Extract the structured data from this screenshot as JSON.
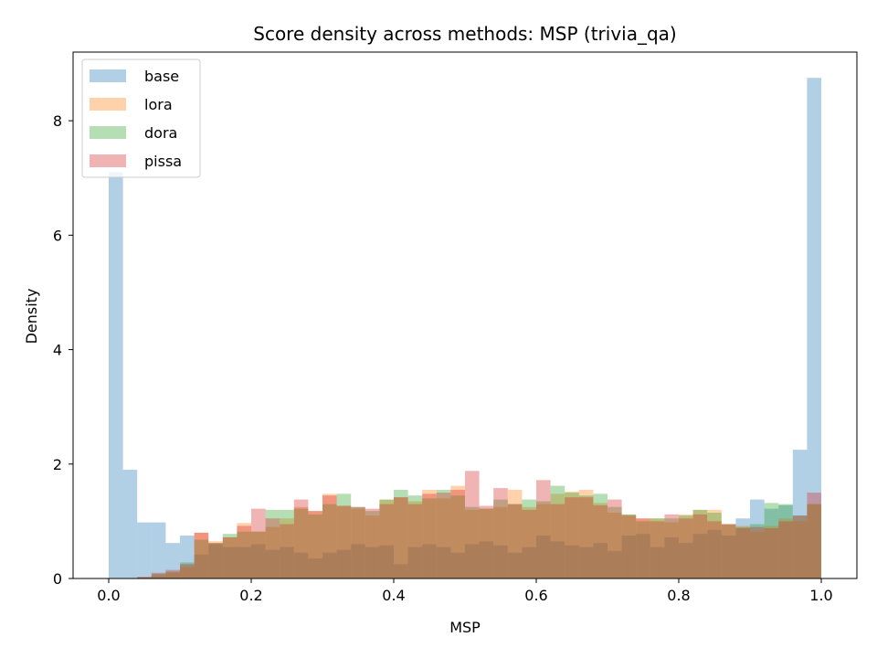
{
  "chart_data": {
    "type": "histogram",
    "title": "Score density across methods: MSP (trivia_qa)",
    "xlabel": "MSP",
    "ylabel": "Density",
    "xlim": [
      -0.05,
      1.05
    ],
    "ylim": [
      0,
      9.2
    ],
    "xticks": [
      "0.0",
      "0.2",
      "0.4",
      "0.6",
      "0.8",
      "1.0"
    ],
    "xtick_values": [
      0.0,
      0.2,
      0.4,
      0.6,
      0.8,
      1.0
    ],
    "yticks": [
      "0",
      "2",
      "4",
      "6",
      "8"
    ],
    "ytick_values": [
      0,
      2,
      4,
      6,
      8
    ],
    "legend_position": "upper-left",
    "grid": false,
    "series": [
      {
        "name": "base",
        "color": "#1f77b4",
        "alpha": 0.35,
        "bin_width": 0.02,
        "x": [
          0.0,
          0.02,
          0.04,
          0.06,
          0.08,
          0.1,
          0.12,
          0.14,
          0.16,
          0.18,
          0.2,
          0.22,
          0.24,
          0.26,
          0.28,
          0.3,
          0.32,
          0.34,
          0.36,
          0.38,
          0.4,
          0.42,
          0.44,
          0.46,
          0.48,
          0.5,
          0.52,
          0.54,
          0.56,
          0.58,
          0.6,
          0.62,
          0.64,
          0.66,
          0.68,
          0.7,
          0.72,
          0.74,
          0.76,
          0.78,
          0.8,
          0.82,
          0.84,
          0.86,
          0.88,
          0.9,
          0.92,
          0.94,
          0.96,
          0.98
        ],
        "values": [
          7.1,
          1.9,
          0.98,
          0.98,
          0.62,
          0.75,
          0.42,
          0.6,
          0.55,
          0.55,
          0.6,
          0.5,
          0.55,
          0.45,
          0.35,
          0.45,
          0.5,
          0.6,
          0.55,
          0.58,
          0.25,
          0.55,
          0.6,
          0.55,
          0.45,
          0.6,
          0.65,
          0.58,
          0.45,
          0.55,
          0.75,
          0.65,
          0.58,
          0.55,
          0.62,
          0.48,
          0.75,
          0.78,
          0.55,
          0.72,
          0.62,
          0.78,
          0.85,
          0.75,
          1.05,
          1.38,
          1.22,
          1.28,
          2.25,
          8.75
        ]
      },
      {
        "name": "lora",
        "color": "#ff7f0e",
        "alpha": 0.35,
        "bin_width": 0.02,
        "x": [
          0.0,
          0.02,
          0.04,
          0.06,
          0.08,
          0.1,
          0.12,
          0.14,
          0.16,
          0.18,
          0.2,
          0.22,
          0.24,
          0.26,
          0.28,
          0.3,
          0.32,
          0.34,
          0.36,
          0.38,
          0.4,
          0.42,
          0.44,
          0.46,
          0.48,
          0.5,
          0.52,
          0.54,
          0.56,
          0.58,
          0.6,
          0.62,
          0.64,
          0.66,
          0.68,
          0.7,
          0.72,
          0.74,
          0.76,
          0.78,
          0.8,
          0.82,
          0.84,
          0.86,
          0.88,
          0.9,
          0.92,
          0.94,
          0.96,
          0.98
        ],
        "values": [
          0.0,
          0.0,
          0.02,
          0.05,
          0.1,
          0.2,
          0.8,
          0.65,
          0.72,
          0.97,
          0.82,
          0.9,
          1.05,
          1.25,
          1.18,
          1.48,
          1.27,
          1.22,
          1.1,
          1.38,
          1.42,
          1.35,
          1.55,
          1.4,
          1.62,
          1.2,
          1.22,
          1.25,
          1.55,
          1.25,
          1.3,
          1.48,
          1.52,
          1.55,
          1.32,
          1.15,
          1.12,
          1.05,
          1.05,
          0.98,
          1.12,
          1.2,
          1.2,
          0.95,
          0.92,
          0.82,
          0.92,
          1.05,
          1.0,
          1.3
        ]
      },
      {
        "name": "dora",
        "color": "#2ca02c",
        "alpha": 0.35,
        "bin_width": 0.02,
        "x": [
          0.0,
          0.02,
          0.04,
          0.06,
          0.08,
          0.1,
          0.12,
          0.14,
          0.16,
          0.18,
          0.2,
          0.22,
          0.24,
          0.26,
          0.28,
          0.3,
          0.32,
          0.34,
          0.36,
          0.38,
          0.4,
          0.42,
          0.44,
          0.46,
          0.48,
          0.5,
          0.52,
          0.54,
          0.56,
          0.58,
          0.6,
          0.62,
          0.64,
          0.66,
          0.68,
          0.7,
          0.72,
          0.74,
          0.76,
          0.78,
          0.8,
          0.82,
          0.84,
          0.86,
          0.88,
          0.9,
          0.92,
          0.94,
          0.96,
          0.98
        ],
        "values": [
          0.0,
          0.0,
          0.02,
          0.08,
          0.12,
          0.28,
          0.68,
          0.62,
          0.78,
          0.82,
          0.82,
          1.2,
          1.2,
          1.22,
          1.12,
          1.3,
          1.48,
          1.25,
          1.18,
          1.38,
          1.55,
          1.45,
          1.4,
          1.55,
          1.45,
          1.25,
          1.22,
          1.38,
          1.3,
          1.38,
          1.35,
          1.62,
          1.5,
          1.45,
          1.48,
          1.25,
          1.12,
          1.0,
          1.05,
          1.05,
          1.1,
          1.2,
          1.15,
          0.95,
          0.9,
          0.95,
          1.32,
          1.3,
          1.1,
          1.3
        ]
      },
      {
        "name": "pissa",
        "color": "#d62728",
        "alpha": 0.35,
        "bin_width": 0.02,
        "x": [
          0.0,
          0.02,
          0.04,
          0.06,
          0.08,
          0.1,
          0.12,
          0.14,
          0.16,
          0.18,
          0.2,
          0.22,
          0.24,
          0.26,
          0.28,
          0.3,
          0.32,
          0.34,
          0.36,
          0.38,
          0.4,
          0.42,
          0.44,
          0.46,
          0.48,
          0.5,
          0.52,
          0.54,
          0.56,
          0.58,
          0.6,
          0.62,
          0.64,
          0.66,
          0.68,
          0.7,
          0.72,
          0.74,
          0.76,
          0.78,
          0.8,
          0.82,
          0.84,
          0.86,
          0.88,
          0.9,
          0.92,
          0.94,
          0.96,
          0.98
        ],
        "values": [
          0.0,
          0.0,
          0.03,
          0.1,
          0.15,
          0.25,
          0.8,
          0.62,
          0.72,
          0.92,
          1.22,
          1.05,
          0.95,
          1.38,
          1.18,
          1.45,
          1.27,
          1.25,
          1.22,
          1.3,
          1.42,
          1.3,
          1.48,
          1.5,
          1.55,
          1.88,
          1.27,
          1.58,
          1.3,
          1.2,
          1.72,
          1.3,
          1.42,
          1.42,
          1.28,
          1.38,
          1.1,
          1.05,
          1.0,
          1.12,
          1.05,
          1.12,
          1.0,
          0.95,
          0.88,
          0.9,
          0.88,
          1.0,
          1.1,
          1.5
        ]
      }
    ]
  }
}
